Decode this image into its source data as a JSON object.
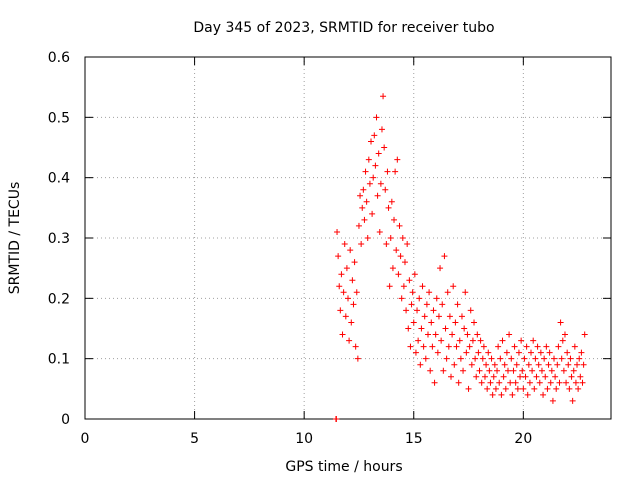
{
  "chart_data": {
    "type": "scatter",
    "title": "Day 345 of 2023, SRMTID for receiver tubo",
    "xlabel": "GPS time / hours",
    "ylabel": "SRMTID / TECUs",
    "xlim": [
      0,
      24
    ],
    "ylim": [
      0,
      0.6
    ],
    "x_ticks": [
      0,
      5,
      10,
      15,
      20
    ],
    "x_tick_labels": [
      "0",
      "5",
      "10",
      "15",
      "20"
    ],
    "y_ticks": [
      0,
      0.1,
      0.2,
      0.3,
      0.4,
      0.5,
      0.6
    ],
    "y_tick_labels": [
      "0",
      "0.1",
      "0.2",
      "0.3",
      "0.4",
      "0.5",
      "0.6"
    ],
    "grid": true,
    "marker": "+",
    "color": "#ff0000",
    "series": [
      {
        "name": "SRMTID",
        "points": [
          [
            11.45,
            0.0
          ],
          [
            11.47,
            0.0
          ],
          [
            11.5,
            0.31
          ],
          [
            11.55,
            0.27
          ],
          [
            11.6,
            0.22
          ],
          [
            11.65,
            0.18
          ],
          [
            11.7,
            0.24
          ],
          [
            11.75,
            0.14
          ],
          [
            11.8,
            0.21
          ],
          [
            11.85,
            0.29
          ],
          [
            11.9,
            0.17
          ],
          [
            11.95,
            0.25
          ],
          [
            12.0,
            0.2
          ],
          [
            12.05,
            0.13
          ],
          [
            12.1,
            0.28
          ],
          [
            12.15,
            0.16
          ],
          [
            12.2,
            0.23
          ],
          [
            12.25,
            0.19
          ],
          [
            12.3,
            0.26
          ],
          [
            12.35,
            0.12
          ],
          [
            12.4,
            0.21
          ],
          [
            12.45,
            0.1
          ],
          [
            12.5,
            0.32
          ],
          [
            12.55,
            0.37
          ],
          [
            12.6,
            0.29
          ],
          [
            12.65,
            0.35
          ],
          [
            12.7,
            0.38
          ],
          [
            12.75,
            0.33
          ],
          [
            12.8,
            0.41
          ],
          [
            12.85,
            0.36
          ],
          [
            12.9,
            0.3
          ],
          [
            12.95,
            0.43
          ],
          [
            13.0,
            0.39
          ],
          [
            13.05,
            0.46
          ],
          [
            13.1,
            0.34
          ],
          [
            13.15,
            0.4
          ],
          [
            13.2,
            0.47
          ],
          [
            13.25,
            0.42
          ],
          [
            13.3,
            0.5
          ],
          [
            13.35,
            0.37
          ],
          [
            13.4,
            0.44
          ],
          [
            13.45,
            0.31
          ],
          [
            13.5,
            0.39
          ],
          [
            13.55,
            0.48
          ],
          [
            13.6,
            0.535
          ],
          [
            13.65,
            0.45
          ],
          [
            13.7,
            0.38
          ],
          [
            13.75,
            0.29
          ],
          [
            13.8,
            0.41
          ],
          [
            13.85,
            0.35
          ],
          [
            13.9,
            0.22
          ],
          [
            13.95,
            0.3
          ],
          [
            14.0,
            0.36
          ],
          [
            14.05,
            0.25
          ],
          [
            14.1,
            0.33
          ],
          [
            14.15,
            0.41
          ],
          [
            14.2,
            0.28
          ],
          [
            14.25,
            0.43
          ],
          [
            14.3,
            0.24
          ],
          [
            14.35,
            0.32
          ],
          [
            14.4,
            0.27
          ],
          [
            14.45,
            0.2
          ],
          [
            14.5,
            0.3
          ],
          [
            14.55,
            0.22
          ],
          [
            14.6,
            0.26
          ],
          [
            14.65,
            0.18
          ],
          [
            14.7,
            0.29
          ],
          [
            14.75,
            0.15
          ],
          [
            14.8,
            0.23
          ],
          [
            14.85,
            0.12
          ],
          [
            14.9,
            0.19
          ],
          [
            14.95,
            0.21
          ],
          [
            15.0,
            0.16
          ],
          [
            15.05,
            0.24
          ],
          [
            15.1,
            0.11
          ],
          [
            15.15,
            0.18
          ],
          [
            15.2,
            0.13
          ],
          [
            15.25,
            0.2
          ],
          [
            15.3,
            0.09
          ],
          [
            15.35,
            0.15
          ],
          [
            15.4,
            0.22
          ],
          [
            15.45,
            0.12
          ],
          [
            15.5,
            0.17
          ],
          [
            15.55,
            0.1
          ],
          [
            15.6,
            0.19
          ],
          [
            15.65,
            0.14
          ],
          [
            15.7,
            0.21
          ],
          [
            15.75,
            0.08
          ],
          [
            15.8,
            0.16
          ],
          [
            15.85,
            0.12
          ],
          [
            15.9,
            0.18
          ],
          [
            15.95,
            0.06
          ],
          [
            16.0,
            0.14
          ],
          [
            16.05,
            0.2
          ],
          [
            16.1,
            0.11
          ],
          [
            16.15,
            0.17
          ],
          [
            16.2,
            0.25
          ],
          [
            16.25,
            0.13
          ],
          [
            16.3,
            0.19
          ],
          [
            16.35,
            0.08
          ],
          [
            16.4,
            0.27
          ],
          [
            16.45,
            0.15
          ],
          [
            16.5,
            0.1
          ],
          [
            16.55,
            0.21
          ],
          [
            16.6,
            0.12
          ],
          [
            16.65,
            0.17
          ],
          [
            16.7,
            0.07
          ],
          [
            16.75,
            0.14
          ],
          [
            16.8,
            0.22
          ],
          [
            16.85,
            0.09
          ],
          [
            16.9,
            0.16
          ],
          [
            16.95,
            0.12
          ],
          [
            17.0,
            0.19
          ],
          [
            17.05,
            0.06
          ],
          [
            17.1,
            0.13
          ],
          [
            17.15,
            0.1
          ],
          [
            17.2,
            0.17
          ],
          [
            17.25,
            0.08
          ],
          [
            17.3,
            0.15
          ],
          [
            17.35,
            0.21
          ],
          [
            17.4,
            0.11
          ],
          [
            17.45,
            0.14
          ],
          [
            17.5,
            0.05
          ],
          [
            17.55,
            0.12
          ],
          [
            17.6,
            0.18
          ],
          [
            17.65,
            0.09
          ],
          [
            17.7,
            0.13
          ],
          [
            17.75,
            0.16
          ],
          [
            17.8,
            0.1
          ],
          [
            17.85,
            0.07
          ],
          [
            17.9,
            0.14
          ],
          [
            17.95,
            0.11
          ],
          [
            18.0,
            0.08
          ],
          [
            18.05,
            0.13
          ],
          [
            18.1,
            0.06
          ],
          [
            18.15,
            0.1
          ],
          [
            18.2,
            0.12
          ],
          [
            18.25,
            0.07
          ],
          [
            18.3,
            0.09
          ],
          [
            18.35,
            0.05
          ],
          [
            18.4,
            0.11
          ],
          [
            18.45,
            0.08
          ],
          [
            18.5,
            0.06
          ],
          [
            18.55,
            0.1
          ],
          [
            18.6,
            0.04
          ],
          [
            18.65,
            0.07
          ],
          [
            18.7,
            0.09
          ],
          [
            18.75,
            0.05
          ],
          [
            18.8,
            0.08
          ],
          [
            18.85,
            0.12
          ],
          [
            18.9,
            0.06
          ],
          [
            18.95,
            0.1
          ],
          [
            19.0,
            0.04
          ],
          [
            19.05,
            0.13
          ],
          [
            19.1,
            0.07
          ],
          [
            19.15,
            0.09
          ],
          [
            19.2,
            0.05
          ],
          [
            19.25,
            0.11
          ],
          [
            19.3,
            0.08
          ],
          [
            19.35,
            0.14
          ],
          [
            19.4,
            0.06
          ],
          [
            19.45,
            0.1
          ],
          [
            19.5,
            0.04
          ],
          [
            19.55,
            0.08
          ],
          [
            19.6,
            0.12
          ],
          [
            19.65,
            0.06
          ],
          [
            19.7,
            0.09
          ],
          [
            19.75,
            0.05
          ],
          [
            19.8,
            0.11
          ],
          [
            19.85,
            0.07
          ],
          [
            19.9,
            0.13
          ],
          [
            19.95,
            0.08
          ],
          [
            20.0,
            0.05
          ],
          [
            20.05,
            0.1
          ],
          [
            20.1,
            0.07
          ],
          [
            20.15,
            0.12
          ],
          [
            20.2,
            0.04
          ],
          [
            20.25,
            0.09
          ],
          [
            20.3,
            0.06
          ],
          [
            20.35,
            0.11
          ],
          [
            20.4,
            0.08
          ],
          [
            20.45,
            0.13
          ],
          [
            20.5,
            0.05
          ],
          [
            20.55,
            0.1
          ],
          [
            20.6,
            0.07
          ],
          [
            20.65,
            0.12
          ],
          [
            20.7,
            0.09
          ],
          [
            20.75,
            0.06
          ],
          [
            20.8,
            0.11
          ],
          [
            20.85,
            0.08
          ],
          [
            20.9,
            0.04
          ],
          [
            20.95,
            0.1
          ],
          [
            21.0,
            0.07
          ],
          [
            21.05,
            0.12
          ],
          [
            21.1,
            0.05
          ],
          [
            21.15,
            0.09
          ],
          [
            21.2,
            0.11
          ],
          [
            21.25,
            0.06
          ],
          [
            21.3,
            0.08
          ],
          [
            21.35,
            0.03
          ],
          [
            21.4,
            0.1
          ],
          [
            21.45,
            0.07
          ],
          [
            21.5,
            0.05
          ],
          [
            21.55,
            0.09
          ],
          [
            21.6,
            0.12
          ],
          [
            21.65,
            0.06
          ],
          [
            21.7,
            0.16
          ],
          [
            21.75,
            0.1
          ],
          [
            21.8,
            0.13
          ],
          [
            21.85,
            0.08
          ],
          [
            21.9,
            0.14
          ],
          [
            21.95,
            0.06
          ],
          [
            22.0,
            0.11
          ],
          [
            22.05,
            0.09
          ],
          [
            22.1,
            0.05
          ],
          [
            22.15,
            0.1
          ],
          [
            22.2,
            0.07
          ],
          [
            22.25,
            0.03
          ],
          [
            22.3,
            0.08
          ],
          [
            22.35,
            0.12
          ],
          [
            22.4,
            0.06
          ],
          [
            22.45,
            0.09
          ],
          [
            22.5,
            0.05
          ],
          [
            22.55,
            0.1
          ],
          [
            22.6,
            0.07
          ],
          [
            22.65,
            0.11
          ],
          [
            22.7,
            0.06
          ],
          [
            22.75,
            0.09
          ],
          [
            22.8,
            0.14
          ]
        ]
      }
    ]
  }
}
